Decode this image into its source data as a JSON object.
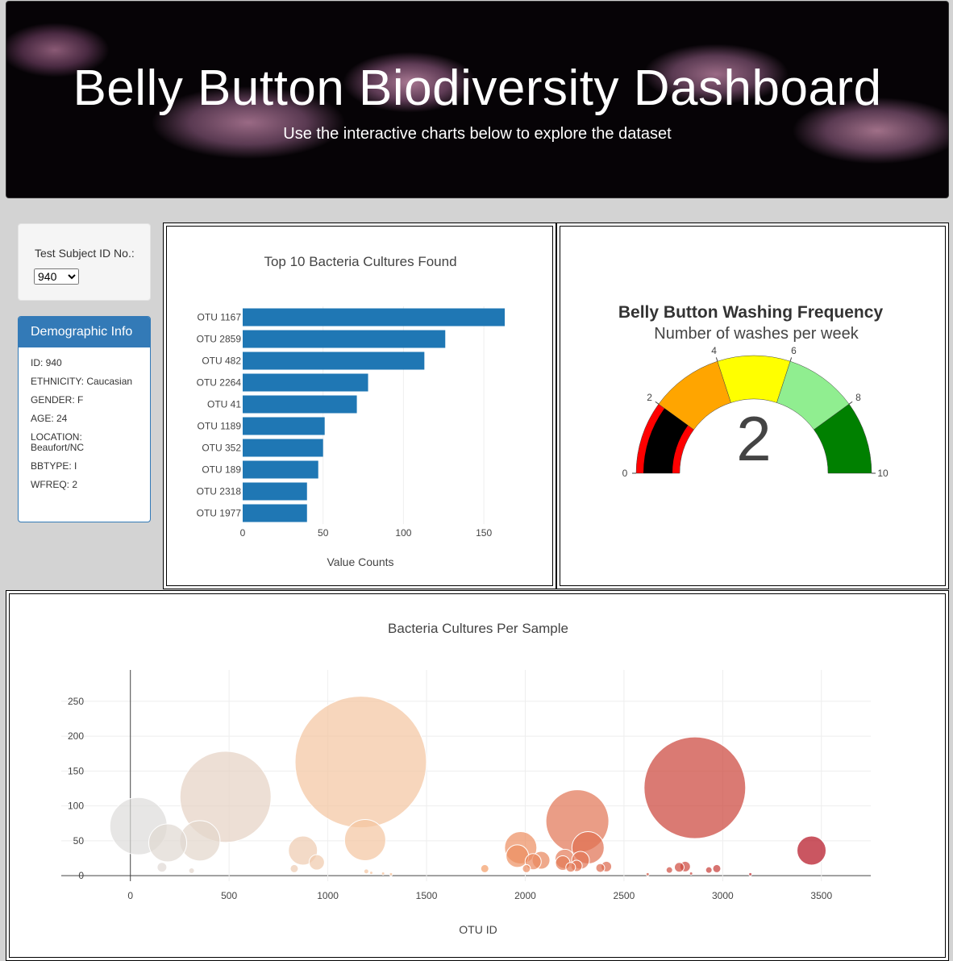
{
  "header": {
    "title": "Belly Button Biodiversity Dashboard",
    "subtitle": "Use the interactive charts below to explore the dataset"
  },
  "selector": {
    "label": "Test Subject ID No.:",
    "selected": "940"
  },
  "demographics": {
    "title": "Demographic Info",
    "items": [
      "ID: 940",
      "ETHNICITY: Caucasian",
      "GENDER: F",
      "AGE: 24",
      "LOCATION: Beaufort/NC",
      "BBTYPE: I",
      "WFREQ: 2"
    ]
  },
  "chart_data": [
    {
      "type": "bar",
      "orientation": "horizontal",
      "title": "Top 10 Bacteria Cultures Found",
      "xlabel": "Value Counts",
      "ylabel": "",
      "categories": [
        "OTU 1167",
        "OTU 2859",
        "OTU 482",
        "OTU 2264",
        "OTU 41",
        "OTU 1189",
        "OTU 352",
        "OTU 189",
        "OTU 2318",
        "OTU 1977"
      ],
      "values": [
        163,
        126,
        113,
        78,
        71,
        51,
        50,
        47,
        40,
        40
      ],
      "xticks": [
        0,
        50,
        100,
        150
      ],
      "xlim": [
        0,
        170
      ],
      "color": "#1f77b4",
      "grid": true
    },
    {
      "type": "gauge",
      "title": "Belly Button Washing Frequency",
      "subtitle": "Number of washes per week",
      "value": 2,
      "range": [
        0,
        10
      ],
      "ticks": [
        0,
        2,
        4,
        6,
        8,
        10
      ],
      "steps": [
        {
          "range": [
            0,
            2
          ],
          "color": "#ff0000"
        },
        {
          "range": [
            2,
            4
          ],
          "color": "#ffa500"
        },
        {
          "range": [
            4,
            6
          ],
          "color": "#ffff00"
        },
        {
          "range": [
            6,
            8
          ],
          "color": "#90ee90"
        },
        {
          "range": [
            8,
            10
          ],
          "color": "#008000"
        }
      ],
      "bar_color": "#000000"
    },
    {
      "type": "scatter",
      "title": "Bacteria Cultures Per Sample",
      "xlabel": "OTU ID",
      "ylabel": "",
      "xticks": [
        0,
        500,
        1000,
        1500,
        2000,
        2500,
        3000,
        3500
      ],
      "yticks": [
        0,
        50,
        100,
        150,
        200,
        250
      ],
      "xlim": [
        -350,
        3750
      ],
      "ylim": [
        -8,
        295
      ],
      "colorscale": "reds",
      "grid": true,
      "points": [
        {
          "x": 41,
          "y": 71
        },
        {
          "x": 189,
          "y": 47
        },
        {
          "x": 352,
          "y": 50
        },
        {
          "x": 482,
          "y": 113
        },
        {
          "x": 1167,
          "y": 163
        },
        {
          "x": 1189,
          "y": 51
        },
        {
          "x": 874,
          "y": 36
        },
        {
          "x": 944,
          "y": 19
        },
        {
          "x": 2859,
          "y": 126
        },
        {
          "x": 2264,
          "y": 78
        },
        {
          "x": 2318,
          "y": 40
        },
        {
          "x": 1977,
          "y": 40
        },
        {
          "x": 1960,
          "y": 28
        },
        {
          "x": 2040,
          "y": 20
        },
        {
          "x": 2080,
          "y": 22
        },
        {
          "x": 2200,
          "y": 24
        },
        {
          "x": 2190,
          "y": 18
        },
        {
          "x": 2260,
          "y": 14
        },
        {
          "x": 2280,
          "y": 22
        },
        {
          "x": 2230,
          "y": 12
        },
        {
          "x": 2006,
          "y": 10
        },
        {
          "x": 2380,
          "y": 11
        },
        {
          "x": 2411,
          "y": 13
        },
        {
          "x": 3450,
          "y": 36
        },
        {
          "x": 2730,
          "y": 8
        },
        {
          "x": 2780,
          "y": 12
        },
        {
          "x": 2810,
          "y": 13
        },
        {
          "x": 2930,
          "y": 8
        },
        {
          "x": 2970,
          "y": 10
        },
        {
          "x": 1795,
          "y": 10
        },
        {
          "x": 160,
          "y": 12
        },
        {
          "x": 310,
          "y": 7
        },
        {
          "x": 830,
          "y": 10
        },
        {
          "x": 1195,
          "y": 6
        },
        {
          "x": 1220,
          "y": 4
        },
        {
          "x": 1280,
          "y": 3
        },
        {
          "x": 1320,
          "y": 2
        },
        {
          "x": 2620,
          "y": 2
        },
        {
          "x": 2840,
          "y": 3
        },
        {
          "x": 3140,
          "y": 2
        }
      ]
    }
  ]
}
